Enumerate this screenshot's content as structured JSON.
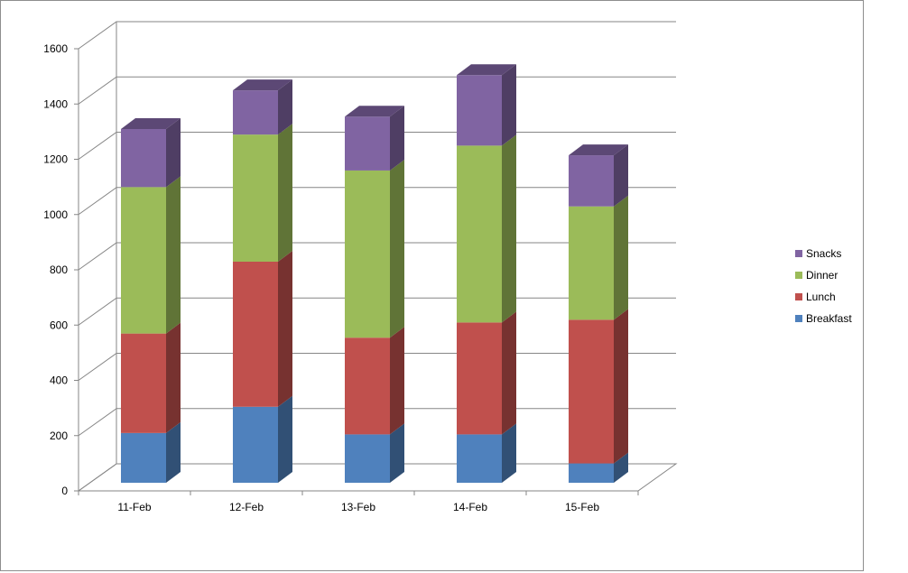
{
  "chart_data": {
    "type": "bar",
    "stacked": true,
    "style": "3d-column",
    "title": "",
    "xlabel": "",
    "ylabel": "",
    "ylim": [
      0,
      1600
    ],
    "yticks": [
      "0",
      "200",
      "400",
      "600",
      "800",
      "1000",
      "1200",
      "1400",
      "1600"
    ],
    "grid": true,
    "legend_position": "right",
    "categories": [
      "11-Feb",
      "12-Feb",
      "13-Feb",
      "14-Feb",
      "15-Feb"
    ],
    "series": [
      {
        "name": "Breakfast",
        "color": "#4f81bd",
        "values": [
          180,
          275,
          175,
          175,
          70
        ]
      },
      {
        "name": "Lunch",
        "color": "#c0504d",
        "values": [
          360,
          525,
          350,
          405,
          520
        ]
      },
      {
        "name": "Dinner",
        "color": "#9bbb59",
        "values": [
          530,
          460,
          605,
          640,
          410
        ]
      },
      {
        "name": "Snacks",
        "color": "#8064a2",
        "values": [
          210,
          160,
          195,
          255,
          185
        ]
      }
    ]
  }
}
